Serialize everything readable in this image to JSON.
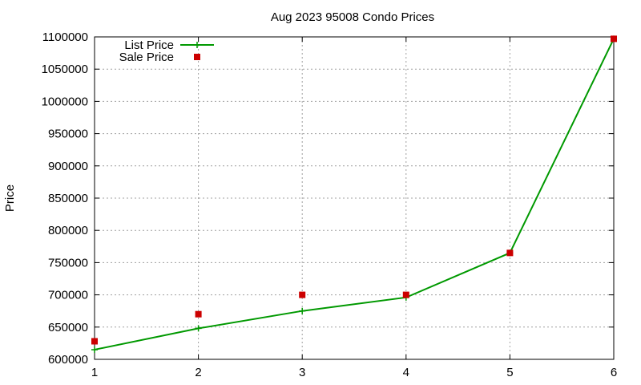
{
  "chart_data": {
    "type": "line",
    "title": "Aug 2023 95008 Condo Prices",
    "xlabel": "",
    "ylabel": "Price",
    "xlim": [
      1,
      6
    ],
    "ylim": [
      600000,
      1100000
    ],
    "x_ticks": [
      1,
      2,
      3,
      4,
      5,
      6
    ],
    "y_ticks": [
      600000,
      650000,
      700000,
      750000,
      800000,
      850000,
      900000,
      950000,
      1000000,
      1050000,
      1100000
    ],
    "grid": true,
    "legend_position": "top-left",
    "x": [
      1,
      2,
      3,
      4,
      5,
      6
    ],
    "series": [
      {
        "name": "List Price",
        "style": "line-with-plus-markers",
        "color": "#009900",
        "values": [
          615000,
          648000,
          675000,
          696000,
          765000,
          1097000
        ]
      },
      {
        "name": "Sale Price",
        "style": "square-markers",
        "color": "#cc0000",
        "values": [
          628000,
          670000,
          700000,
          700000,
          765000,
          1097000
        ]
      }
    ]
  }
}
